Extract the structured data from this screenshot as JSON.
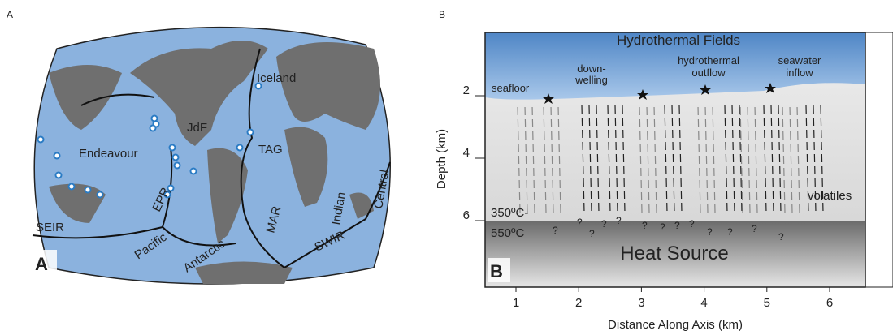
{
  "panel_a": {
    "panel_label": "A",
    "inset_label": "A",
    "place_labels": [
      "Iceland",
      "JdF",
      "Endeavour",
      "TAG",
      "EPR",
      "MAR",
      "Indian",
      "Central",
      "SEIR",
      "Pacific",
      "Antarctic",
      "SWIR"
    ]
  },
  "panel_b": {
    "panel_label": "B",
    "inset_label": "B",
    "title": "Hydrothermal Fields",
    "annotations": {
      "downwelling_1": "down-",
      "downwelling_2": "welling",
      "outflow_1": "hydrothermal",
      "outflow_2": "outflow",
      "inflow_1": "seawater",
      "inflow_2": "inflow",
      "seafloor": "seafloor",
      "volatiles": "volatiles",
      "temp_1": "350ºC-",
      "temp_2": "550ºC",
      "heat_source": "Heat Source",
      "unknown": "?"
    },
    "x_label": "Distance Along Axis (km)",
    "y_label": "Depth (km)",
    "xticks": [
      1,
      2,
      3,
      4,
      5,
      6
    ],
    "yticks": [
      2,
      4,
      6
    ]
  }
}
